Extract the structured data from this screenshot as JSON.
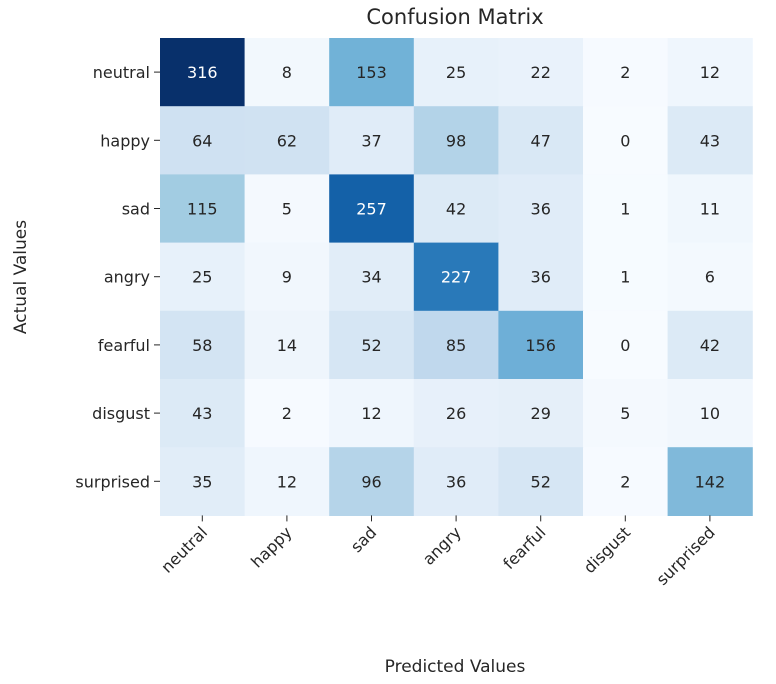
{
  "chart_data": {
    "type": "heatmap",
    "title": "Confusion Matrix",
    "xlabel": "Predicted Values",
    "ylabel": "Actual Values",
    "x_categories": [
      "neutral",
      "happy",
      "sad",
      "angry",
      "fearful",
      "disgust",
      "surprised"
    ],
    "y_categories": [
      "neutral",
      "happy",
      "sad",
      "angry",
      "fearful",
      "disgust",
      "surprised"
    ],
    "values": [
      [
        316,
        8,
        153,
        25,
        22,
        2,
        12
      ],
      [
        64,
        62,
        37,
        98,
        47,
        0,
        43
      ],
      [
        115,
        5,
        257,
        42,
        36,
        1,
        11
      ],
      [
        25,
        9,
        34,
        227,
        36,
        1,
        6
      ],
      [
        58,
        14,
        52,
        85,
        156,
        0,
        42
      ],
      [
        43,
        2,
        12,
        26,
        29,
        5,
        10
      ],
      [
        35,
        12,
        96,
        36,
        52,
        2,
        142
      ]
    ],
    "colormap": "Blues",
    "colorbar": false,
    "annotated": true
  }
}
